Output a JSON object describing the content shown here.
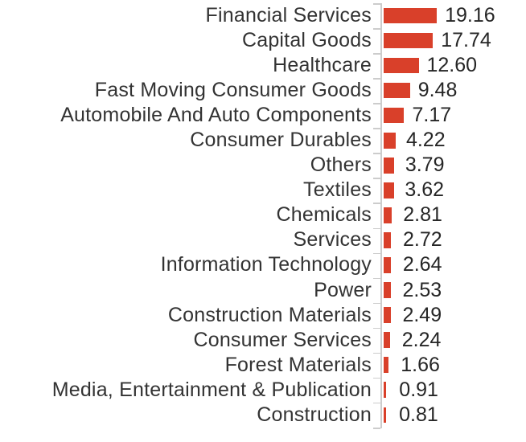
{
  "chart_data": {
    "type": "bar",
    "orientation": "horizontal",
    "title": "",
    "xlabel": "",
    "ylabel": "",
    "grid": false,
    "legend": "none",
    "xlim": [
      0,
      20
    ],
    "categories": [
      "Financial Services",
      "Capital Goods",
      "Healthcare",
      "Fast Moving Consumer Goods",
      "Automobile And Auto Components",
      "Consumer Durables",
      "Others",
      "Textiles",
      "Chemicals",
      "Services",
      "Information Technology",
      "Power",
      "Construction Materials",
      "Consumer Services",
      "Forest Materials",
      "Media, Entertainment & Publication",
      "Construction"
    ],
    "values": [
      19.16,
      17.74,
      12.6,
      9.48,
      7.17,
      4.22,
      3.79,
      3.62,
      2.81,
      2.72,
      2.64,
      2.53,
      2.49,
      2.24,
      1.66,
      0.91,
      0.81
    ],
    "value_labels": [
      "19.16",
      "17.74",
      "12.60",
      "9.48",
      "7.17",
      "4.22",
      "3.79",
      "3.62",
      "2.81",
      "2.72",
      "2.64",
      "2.53",
      "2.49",
      "2.24",
      "1.66",
      "0.91",
      "0.81"
    ],
    "colors": {
      "bar": "#d9402a",
      "axis": "#cccccc",
      "category_label": "#333333",
      "value_label": "#262626"
    }
  }
}
